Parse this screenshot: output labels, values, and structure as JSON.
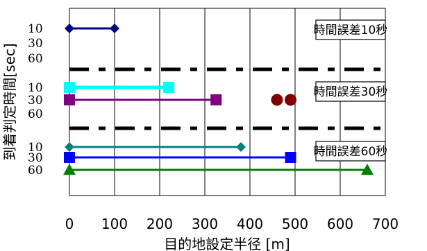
{
  "chart_data": {
    "type": "line",
    "xlabel": "目的地設定半径 [m]",
    "ylabel": "到着判定時間[sec]",
    "xlim": [
      0,
      700
    ],
    "x_ticks": [
      "0",
      "100",
      "200",
      "300",
      "400",
      "500",
      "600",
      "700"
    ],
    "grid": "vertical",
    "groups": [
      {
        "label": "時間誤差10秒",
        "y_ticks": [
          "10",
          "30",
          "60"
        ]
      },
      {
        "label": "時間誤差30秒",
        "y_ticks": [
          "10",
          "30",
          "60"
        ]
      },
      {
        "label": "時間誤差60秒",
        "y_ticks": [
          "10",
          "30",
          "60"
        ]
      }
    ],
    "series": [
      {
        "group": 0,
        "y": 10,
        "x": [
          0,
          100
        ],
        "color": "#000080",
        "marker": "diamond"
      },
      {
        "group": 1,
        "y": 10,
        "x": [
          0,
          220
        ],
        "color": "#00FFFF",
        "marker": "square"
      },
      {
        "group": 1,
        "y": 30,
        "x": [
          0,
          325
        ],
        "color": "#800080",
        "marker": "square"
      },
      {
        "group": 1,
        "y": 30,
        "x": [
          460,
          490
        ],
        "color": "#800000",
        "marker": "circle",
        "line": false
      },
      {
        "group": 2,
        "y": 10,
        "x": [
          0,
          380
        ],
        "color": "#008080",
        "marker": "diamond"
      },
      {
        "group": 2,
        "y": 30,
        "x": [
          0,
          490
        ],
        "color": "#0000FF",
        "marker": "square"
      },
      {
        "group": 2,
        "y": 60,
        "x": [
          0,
          660
        ],
        "color": "#008000",
        "marker": "triangle"
      }
    ]
  }
}
